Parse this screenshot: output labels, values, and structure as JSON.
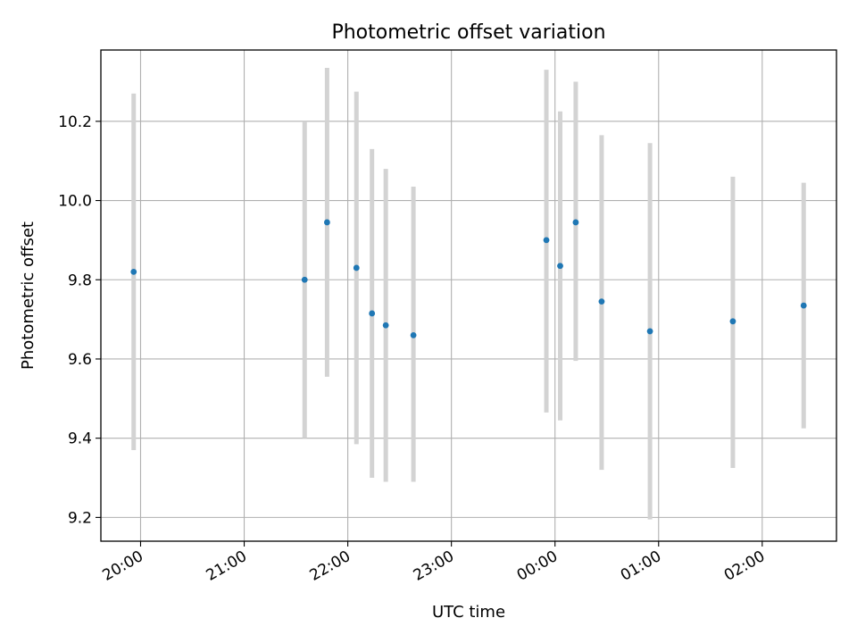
{
  "chart_data": {
    "type": "scatter",
    "title": "Photometric offset variation",
    "xlabel": "UTC time",
    "ylabel": "Photometric offset",
    "x_type": "time",
    "x_ticks": [
      "20:00",
      "21:00",
      "22:00",
      "23:00",
      "00:00",
      "01:00",
      "02:00"
    ],
    "y_ticks": [
      "9.2",
      "9.4",
      "9.6",
      "9.8",
      "10.0",
      "10.2"
    ],
    "xlim": [
      "19:37",
      "02:43"
    ],
    "ylim": [
      9.14,
      10.38
    ],
    "grid": true,
    "colors": {
      "point": "#1f77b4",
      "errorbar": "#d3d3d3",
      "grid": "#b0b0b0"
    },
    "series": [
      {
        "points": [
          {
            "time": "19:56",
            "y": 9.82,
            "ylow": 9.37,
            "yhigh": 10.27
          },
          {
            "time": "21:35",
            "y": 9.8,
            "ylow": 9.4,
            "yhigh": 10.2
          },
          {
            "time": "21:48",
            "y": 9.945,
            "ylow": 9.555,
            "yhigh": 10.335
          },
          {
            "time": "22:05",
            "y": 9.83,
            "ylow": 9.385,
            "yhigh": 10.275
          },
          {
            "time": "22:14",
            "y": 9.715,
            "ylow": 9.3,
            "yhigh": 10.13
          },
          {
            "time": "22:22",
            "y": 9.685,
            "ylow": 9.29,
            "yhigh": 10.08
          },
          {
            "time": "22:38",
            "y": 9.66,
            "ylow": 9.29,
            "yhigh": 10.035
          },
          {
            "time": "23:55",
            "y": 9.9,
            "ylow": 9.465,
            "yhigh": 10.33
          },
          {
            "time": "00:03",
            "y": 9.835,
            "ylow": 9.445,
            "yhigh": 10.225
          },
          {
            "time": "00:12",
            "y": 9.945,
            "ylow": 9.595,
            "yhigh": 10.3
          },
          {
            "time": "00:27",
            "y": 9.745,
            "ylow": 9.32,
            "yhigh": 10.165
          },
          {
            "time": "00:55",
            "y": 9.67,
            "ylow": 9.195,
            "yhigh": 10.145
          },
          {
            "time": "01:43",
            "y": 9.695,
            "ylow": 9.325,
            "yhigh": 10.06
          },
          {
            "time": "02:24",
            "y": 9.735,
            "ylow": 9.425,
            "yhigh": 10.045
          }
        ]
      }
    ]
  }
}
